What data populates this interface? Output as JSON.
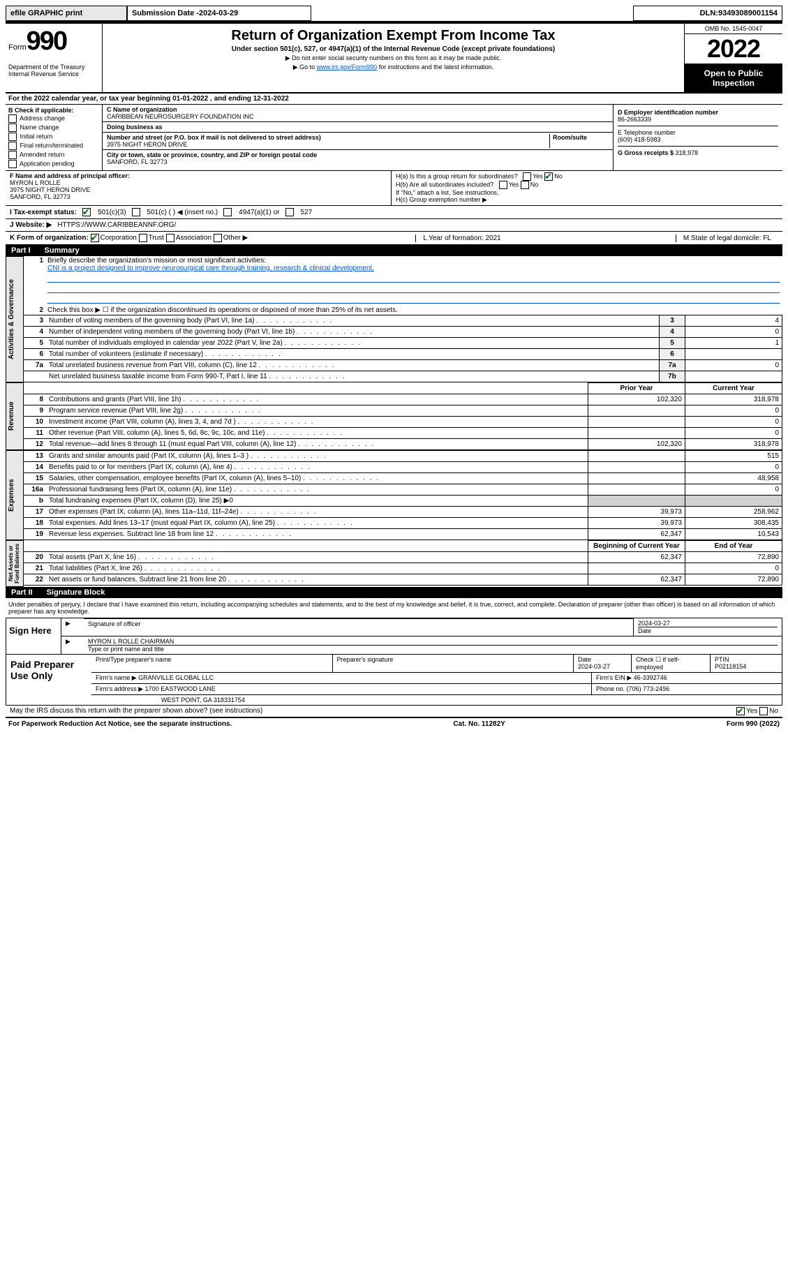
{
  "topbar": {
    "efile": "efile GRAPHIC print",
    "subdate_label": "Submission Date - ",
    "subdate": "2024-03-29",
    "dln_label": "DLN: ",
    "dln": "93493089001154"
  },
  "header": {
    "form_word": "Form",
    "form_num": "990",
    "dept": "Department of the Treasury\nInternal Revenue Service",
    "title": "Return of Organization Exempt From Income Tax",
    "sub1": "Under section 501(c), 527, or 4947(a)(1) of the Internal Revenue Code (except private foundations)",
    "sub2": "▶ Do not enter social security numbers on this form as it may be made public.",
    "sub3_pre": "▶ Go to ",
    "sub3_link": "www.irs.gov/Form990",
    "sub3_post": " for instructions and the latest information.",
    "omb": "OMB No. 1545-0047",
    "year": "2022",
    "open": "Open to Public Inspection"
  },
  "period": "For the 2022 calendar year, or tax year beginning 01-01-2022    , and ending 12-31-2022",
  "checks": {
    "hdr": "B Check if applicable:",
    "items": [
      "Address change",
      "Name change",
      "Initial return",
      "Final return/terminated",
      "Amended return",
      "Application pending"
    ]
  },
  "entity": {
    "name_lbl": "C Name of organization",
    "name": "CARIBBEAN NEUROSURGERY FOUNDATION INC",
    "dba_lbl": "Doing business as",
    "dba": "",
    "addr_lbl": "Number and street (or P.O. box if mail is not delivered to street address)",
    "room_lbl": "Room/suite",
    "addr": "3975 NIGHT HERON DRIVE",
    "city_lbl": "City or town, state or province, country, and ZIP or foreign postal code",
    "city": "SANFORD, FL  32773",
    "ein_lbl": "D Employer identification number",
    "ein": "86-2663339",
    "tel_lbl": "E Telephone number",
    "tel": "(609) 418-5983",
    "gross_lbl": "G Gross receipts $ ",
    "gross": "318,978"
  },
  "officer": {
    "lbl": "F  Name and address of principal officer:",
    "name": "MYRON L ROLLE",
    "addr1": "3975 NIGHT HERON DRIVE",
    "addr2": "SANFORD, FL  32773"
  },
  "group": {
    "ha": "H(a)  Is this a group return for subordinates?",
    "hb": "H(b)  Are all subordinates included?",
    "hb_note": "If \"No,\" attach a list. See instructions.",
    "hc": "H(c)  Group exemption number ▶"
  },
  "status": {
    "lbl": "I    Tax-exempt status:",
    "o1": "501(c)(3)",
    "o2": "501(c) (  ) ◀ (insert no.)",
    "o3": "4947(a)(1) or",
    "o4": "527"
  },
  "website": {
    "lbl": "J    Website: ▶",
    "val": "HTTPS://WWW.CARIBBEANNF.ORG/"
  },
  "formorg": {
    "k_lbl": "K Form of organization:",
    "k_opts": [
      "Corporation",
      "Trust",
      "Association",
      "Other ▶"
    ],
    "l": "L Year of formation: 2021",
    "m": "M State of legal domicile: FL"
  },
  "part1": {
    "label": "Part I",
    "title": "Summary"
  },
  "summary": {
    "l1_lbl": "Briefly describe the organization's mission or most significant activities:",
    "l1_val": "CNI is a project designed to improve neurosurgical care through training, research & clinical development.",
    "l2": "Check this box ▶ ☐  if the organization discontinued its operations or disposed of more than 25% of its net assets.",
    "rows_a": [
      {
        "n": "3",
        "t": "Number of voting members of the governing body (Part VI, line 1a)",
        "k": "3",
        "v": "4"
      },
      {
        "n": "4",
        "t": "Number of independent voting members of the governing body (Part VI, line 1b)",
        "k": "4",
        "v": "0"
      },
      {
        "n": "5",
        "t": "Total number of individuals employed in calendar year 2022 (Part V, line 2a)",
        "k": "5",
        "v": "1"
      },
      {
        "n": "6",
        "t": "Total number of volunteers (estimate if necessary)",
        "k": "6",
        "v": ""
      },
      {
        "n": "7a",
        "t": "Total unrelated business revenue from Part VIII, column (C), line 12",
        "k": "7a",
        "v": "0"
      },
      {
        "n": "",
        "t": "Net unrelated business taxable income from Form 990-T, Part I, line 11",
        "k": "7b",
        "v": ""
      }
    ],
    "col_prior": "Prior Year",
    "col_curr": "Current Year",
    "rows_rev": [
      {
        "n": "8",
        "t": "Contributions and grants (Part VIII, line 1h)",
        "p": "102,320",
        "c": "318,978"
      },
      {
        "n": "9",
        "t": "Program service revenue (Part VIII, line 2g)",
        "p": "",
        "c": "0"
      },
      {
        "n": "10",
        "t": "Investment income (Part VIII, column (A), lines 3, 4, and 7d )",
        "p": "",
        "c": "0"
      },
      {
        "n": "11",
        "t": "Other revenue (Part VIII, column (A), lines 5, 6d, 8c, 9c, 10c, and 11e)",
        "p": "",
        "c": "0"
      },
      {
        "n": "12",
        "t": "Total revenue—add lines 8 through 11 (must equal Part VIII, column (A), line 12)",
        "p": "102,320",
        "c": "318,978"
      }
    ],
    "rows_exp": [
      {
        "n": "13",
        "t": "Grants and similar amounts paid (Part IX, column (A), lines 1–3 )",
        "p": "",
        "c": "515"
      },
      {
        "n": "14",
        "t": "Benefits paid to or for members (Part IX, column (A), line 4)",
        "p": "",
        "c": "0"
      },
      {
        "n": "15",
        "t": "Salaries, other compensation, employee benefits (Part IX, column (A), lines 5–10)",
        "p": "",
        "c": "48,958"
      },
      {
        "n": "16a",
        "t": "Professional fundraising fees (Part IX, column (A), line 11e)",
        "p": "",
        "c": "0"
      },
      {
        "n": "b",
        "t": "Total fundraising expenses (Part IX, column (D), line 25) ▶0",
        "p": "—",
        "c": "—"
      },
      {
        "n": "17",
        "t": "Other expenses (Part IX, column (A), lines 11a–11d, 11f–24e)",
        "p": "39,973",
        "c": "258,962"
      },
      {
        "n": "18",
        "t": "Total expenses. Add lines 13–17 (must equal Part IX, column (A), line 25)",
        "p": "39,973",
        "c": "308,435"
      },
      {
        "n": "19",
        "t": "Revenue less expenses. Subtract line 18 from line 12",
        "p": "62,347",
        "c": "10,543"
      }
    ],
    "col_begin": "Beginning of Current Year",
    "col_end": "End of Year",
    "rows_net": [
      {
        "n": "20",
        "t": "Total assets (Part X, line 16)",
        "p": "62,347",
        "c": "72,890"
      },
      {
        "n": "21",
        "t": "Total liabilities (Part X, line 26)",
        "p": "",
        "c": "0"
      },
      {
        "n": "22",
        "t": "Net assets or fund balances. Subtract line 21 from line 20",
        "p": "62,347",
        "c": "72,890"
      }
    ]
  },
  "vlabels": {
    "gov": "Activities & Governance",
    "rev": "Revenue",
    "exp": "Expenses",
    "net": "Net Assets or\nFund Balances"
  },
  "part2": {
    "label": "Part II",
    "title": "Signature Block"
  },
  "sig": {
    "text": "Under penalties of perjury, I declare that I have examined this return, including accompanying schedules and statements, and to the best of my knowledge and belief, it is true, correct, and complete. Declaration of preparer (other than officer) is based on all information of which preparer has any knowledge.",
    "here": "Sign Here",
    "sig_lbl": "Signature of officer",
    "date_lbl": "Date",
    "date": "2024-03-27",
    "name": "MYRON L ROLLE  CHAIRMAN",
    "name_lbl": "Type or print name and title"
  },
  "prep": {
    "lbl": "Paid Preparer Use Only",
    "h1": "Print/Type preparer's name",
    "h2": "Preparer's signature",
    "h3": "Date",
    "h4": "Check ☐ if self-employed",
    "h5": "PTIN",
    "date": "2024-03-27",
    "ptin": "P02118154",
    "firm_lbl": "Firm's name    ▶",
    "firm": "GRANVILLE GLOBAL LLC",
    "ein_lbl": "Firm's EIN ▶",
    "ein": "46-3392746",
    "addr_lbl": "Firm's address ▶",
    "addr1": "1700 EASTWOOD LANE",
    "addr2": "WEST POINT, GA  318331754",
    "phone_lbl": "Phone no.",
    "phone": "(706) 773-2496"
  },
  "discuss": "May the IRS discuss this return with the preparer shown above? (see instructions)",
  "footer": {
    "left": "For Paperwork Reduction Act Notice, see the separate instructions.",
    "mid": "Cat. No. 11282Y",
    "right": "Form 990 (2022)"
  }
}
